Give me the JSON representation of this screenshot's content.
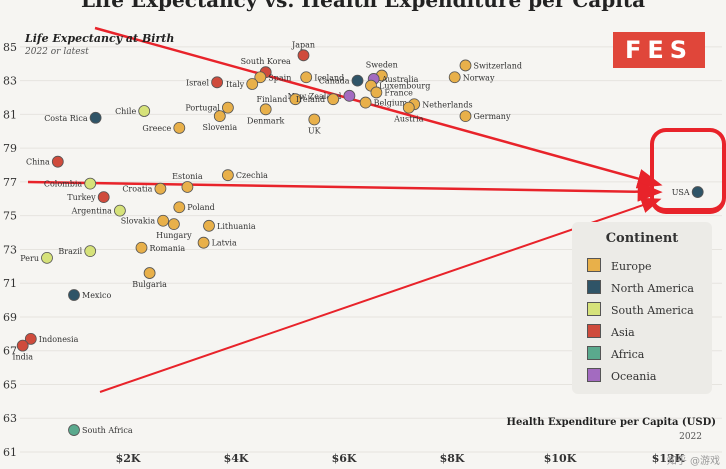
{
  "page": {
    "title": "Life Expectancy vs. Health Expenditure per Capita",
    "y_caption": "Life Expectancy at Birth",
    "y_subcaption": "2022 or latest",
    "x_caption": "Health Expenditure per Capita (USD)",
    "x_subcaption": "2022",
    "logo_text": "FES",
    "watermark": "知乎 @游戏"
  },
  "chart_data": {
    "type": "scatter",
    "title": "Life Expectancy vs. Health Expenditure per Capita",
    "xlabel": "Health Expenditure per Capita (USD)",
    "ylabel": "Life Expectancy at Birth",
    "xlim": [
      0,
      13000
    ],
    "ylim": [
      61,
      86
    ],
    "x_ticks": [
      2000,
      4000,
      6000,
      8000,
      10000,
      12000
    ],
    "x_tick_labels": [
      "$2K",
      "$4K",
      "$6K",
      "$8K",
      "$10K",
      "$12K"
    ],
    "y_ticks": [
      61,
      63,
      65,
      67,
      69,
      71,
      73,
      75,
      77,
      79,
      81,
      83,
      85
    ],
    "legend_title": "Continent",
    "legend_position": "right",
    "legend": [
      {
        "name": "Europe",
        "color": "#e8b04a"
      },
      {
        "name": "North America",
        "color": "#2f5467"
      },
      {
        "name": "South America",
        "color": "#d6e27a"
      },
      {
        "name": "Asia",
        "color": "#cf4b3c"
      },
      {
        "name": "Africa",
        "color": "#5aa98d"
      },
      {
        "name": "Oceania",
        "color": "#a36bc0"
      }
    ],
    "points": [
      {
        "label": "Japan",
        "x": 5250,
        "y": 84.5,
        "group": "Asia"
      },
      {
        "label": "South Korea",
        "x": 4550,
        "y": 83.5,
        "group": "Asia"
      },
      {
        "label": "Spain",
        "x": 4450,
        "y": 83.2,
        "group": "Europe"
      },
      {
        "label": "Israel",
        "x": 3650,
        "y": 82.9,
        "group": "Asia"
      },
      {
        "label": "Italy",
        "x": 4300,
        "y": 82.8,
        "group": "Europe"
      },
      {
        "label": "Canada",
        "x": 6250,
        "y": 83.0,
        "group": "North America"
      },
      {
        "label": "Sweden",
        "x": 6700,
        "y": 83.3,
        "group": "Europe"
      },
      {
        "label": "Australia",
        "x": 6550,
        "y": 83.1,
        "group": "Oceania"
      },
      {
        "label": "Switzerland",
        "x": 8250,
        "y": 83.9,
        "group": "Europe"
      },
      {
        "label": "Norway",
        "x": 8050,
        "y": 83.2,
        "group": "Europe"
      },
      {
        "label": "Iceland",
        "x": 5300,
        "y": 83.2,
        "group": "Europe"
      },
      {
        "label": "New Zealand",
        "x": 6100,
        "y": 82.1,
        "group": "Oceania"
      },
      {
        "label": "Luxembourg",
        "x": 6500,
        "y": 82.7,
        "group": "Europe"
      },
      {
        "label": "France",
        "x": 6600,
        "y": 82.3,
        "group": "Europe"
      },
      {
        "label": "Portugal",
        "x": 3850,
        "y": 81.4,
        "group": "Europe"
      },
      {
        "label": "Finland",
        "x": 5100,
        "y": 81.9,
        "group": "Europe"
      },
      {
        "label": "Ireland",
        "x": 5800,
        "y": 81.9,
        "group": "Europe"
      },
      {
        "label": "Belgium",
        "x": 6400,
        "y": 81.7,
        "group": "Europe"
      },
      {
        "label": "Netherlands",
        "x": 7300,
        "y": 81.6,
        "group": "Europe"
      },
      {
        "label": "Austria",
        "x": 7200,
        "y": 81.4,
        "group": "Europe"
      },
      {
        "label": "Germany",
        "x": 8250,
        "y": 80.9,
        "group": "Europe"
      },
      {
        "label": "Denmark",
        "x": 4550,
        "y": 81.3,
        "group": "Europe"
      },
      {
        "label": "Slovenia",
        "x": 3700,
        "y": 80.9,
        "group": "Europe"
      },
      {
        "label": "UK",
        "x": 5450,
        "y": 80.7,
        "group": "Europe"
      },
      {
        "label": "Costa Rica",
        "x": 1400,
        "y": 80.8,
        "group": "North America"
      },
      {
        "label": "Chile",
        "x": 2300,
        "y": 81.2,
        "group": "South America"
      },
      {
        "label": "Greece",
        "x": 2950,
        "y": 80.2,
        "group": "Europe"
      },
      {
        "label": "China",
        "x": 700,
        "y": 78.2,
        "group": "Asia"
      },
      {
        "label": "Colombia",
        "x": 1300,
        "y": 76.9,
        "group": "South America"
      },
      {
        "label": "Croatia",
        "x": 2600,
        "y": 76.6,
        "group": "Europe"
      },
      {
        "label": "Estonia",
        "x": 3100,
        "y": 76.7,
        "group": "Europe"
      },
      {
        "label": "Czechia",
        "x": 3850,
        "y": 77.4,
        "group": "Europe"
      },
      {
        "label": "USA",
        "x": 12550,
        "y": 76.4,
        "group": "North America"
      },
      {
        "label": "Turkey",
        "x": 1550,
        "y": 76.1,
        "group": "Asia"
      },
      {
        "label": "Argentina",
        "x": 1850,
        "y": 75.3,
        "group": "South America"
      },
      {
        "label": "Poland",
        "x": 2950,
        "y": 75.5,
        "group": "Europe"
      },
      {
        "label": "Slovakia",
        "x": 2650,
        "y": 74.7,
        "group": "Europe"
      },
      {
        "label": "Hungary",
        "x": 2850,
        "y": 74.5,
        "group": "Europe"
      },
      {
        "label": "Lithuania",
        "x": 3500,
        "y": 74.4,
        "group": "Europe"
      },
      {
        "label": "Latvia",
        "x": 3400,
        "y": 73.4,
        "group": "Europe"
      },
      {
        "label": "Brazil",
        "x": 1300,
        "y": 72.9,
        "group": "South America"
      },
      {
        "label": "Romania",
        "x": 2250,
        "y": 73.1,
        "group": "Europe"
      },
      {
        "label": "Peru",
        "x": 500,
        "y": 72.5,
        "group": "South America"
      },
      {
        "label": "Bulgaria",
        "x": 2400,
        "y": 71.6,
        "group": "Europe"
      },
      {
        "label": "Mexico",
        "x": 1000,
        "y": 70.3,
        "group": "North America"
      },
      {
        "label": "Indonesia",
        "x": 200,
        "y": 67.7,
        "group": "Asia"
      },
      {
        "label": "India",
        "x": 50,
        "y": 67.3,
        "group": "Asia"
      },
      {
        "label": "South Africa",
        "x": 1000,
        "y": 62.3,
        "group": "Africa"
      }
    ]
  }
}
